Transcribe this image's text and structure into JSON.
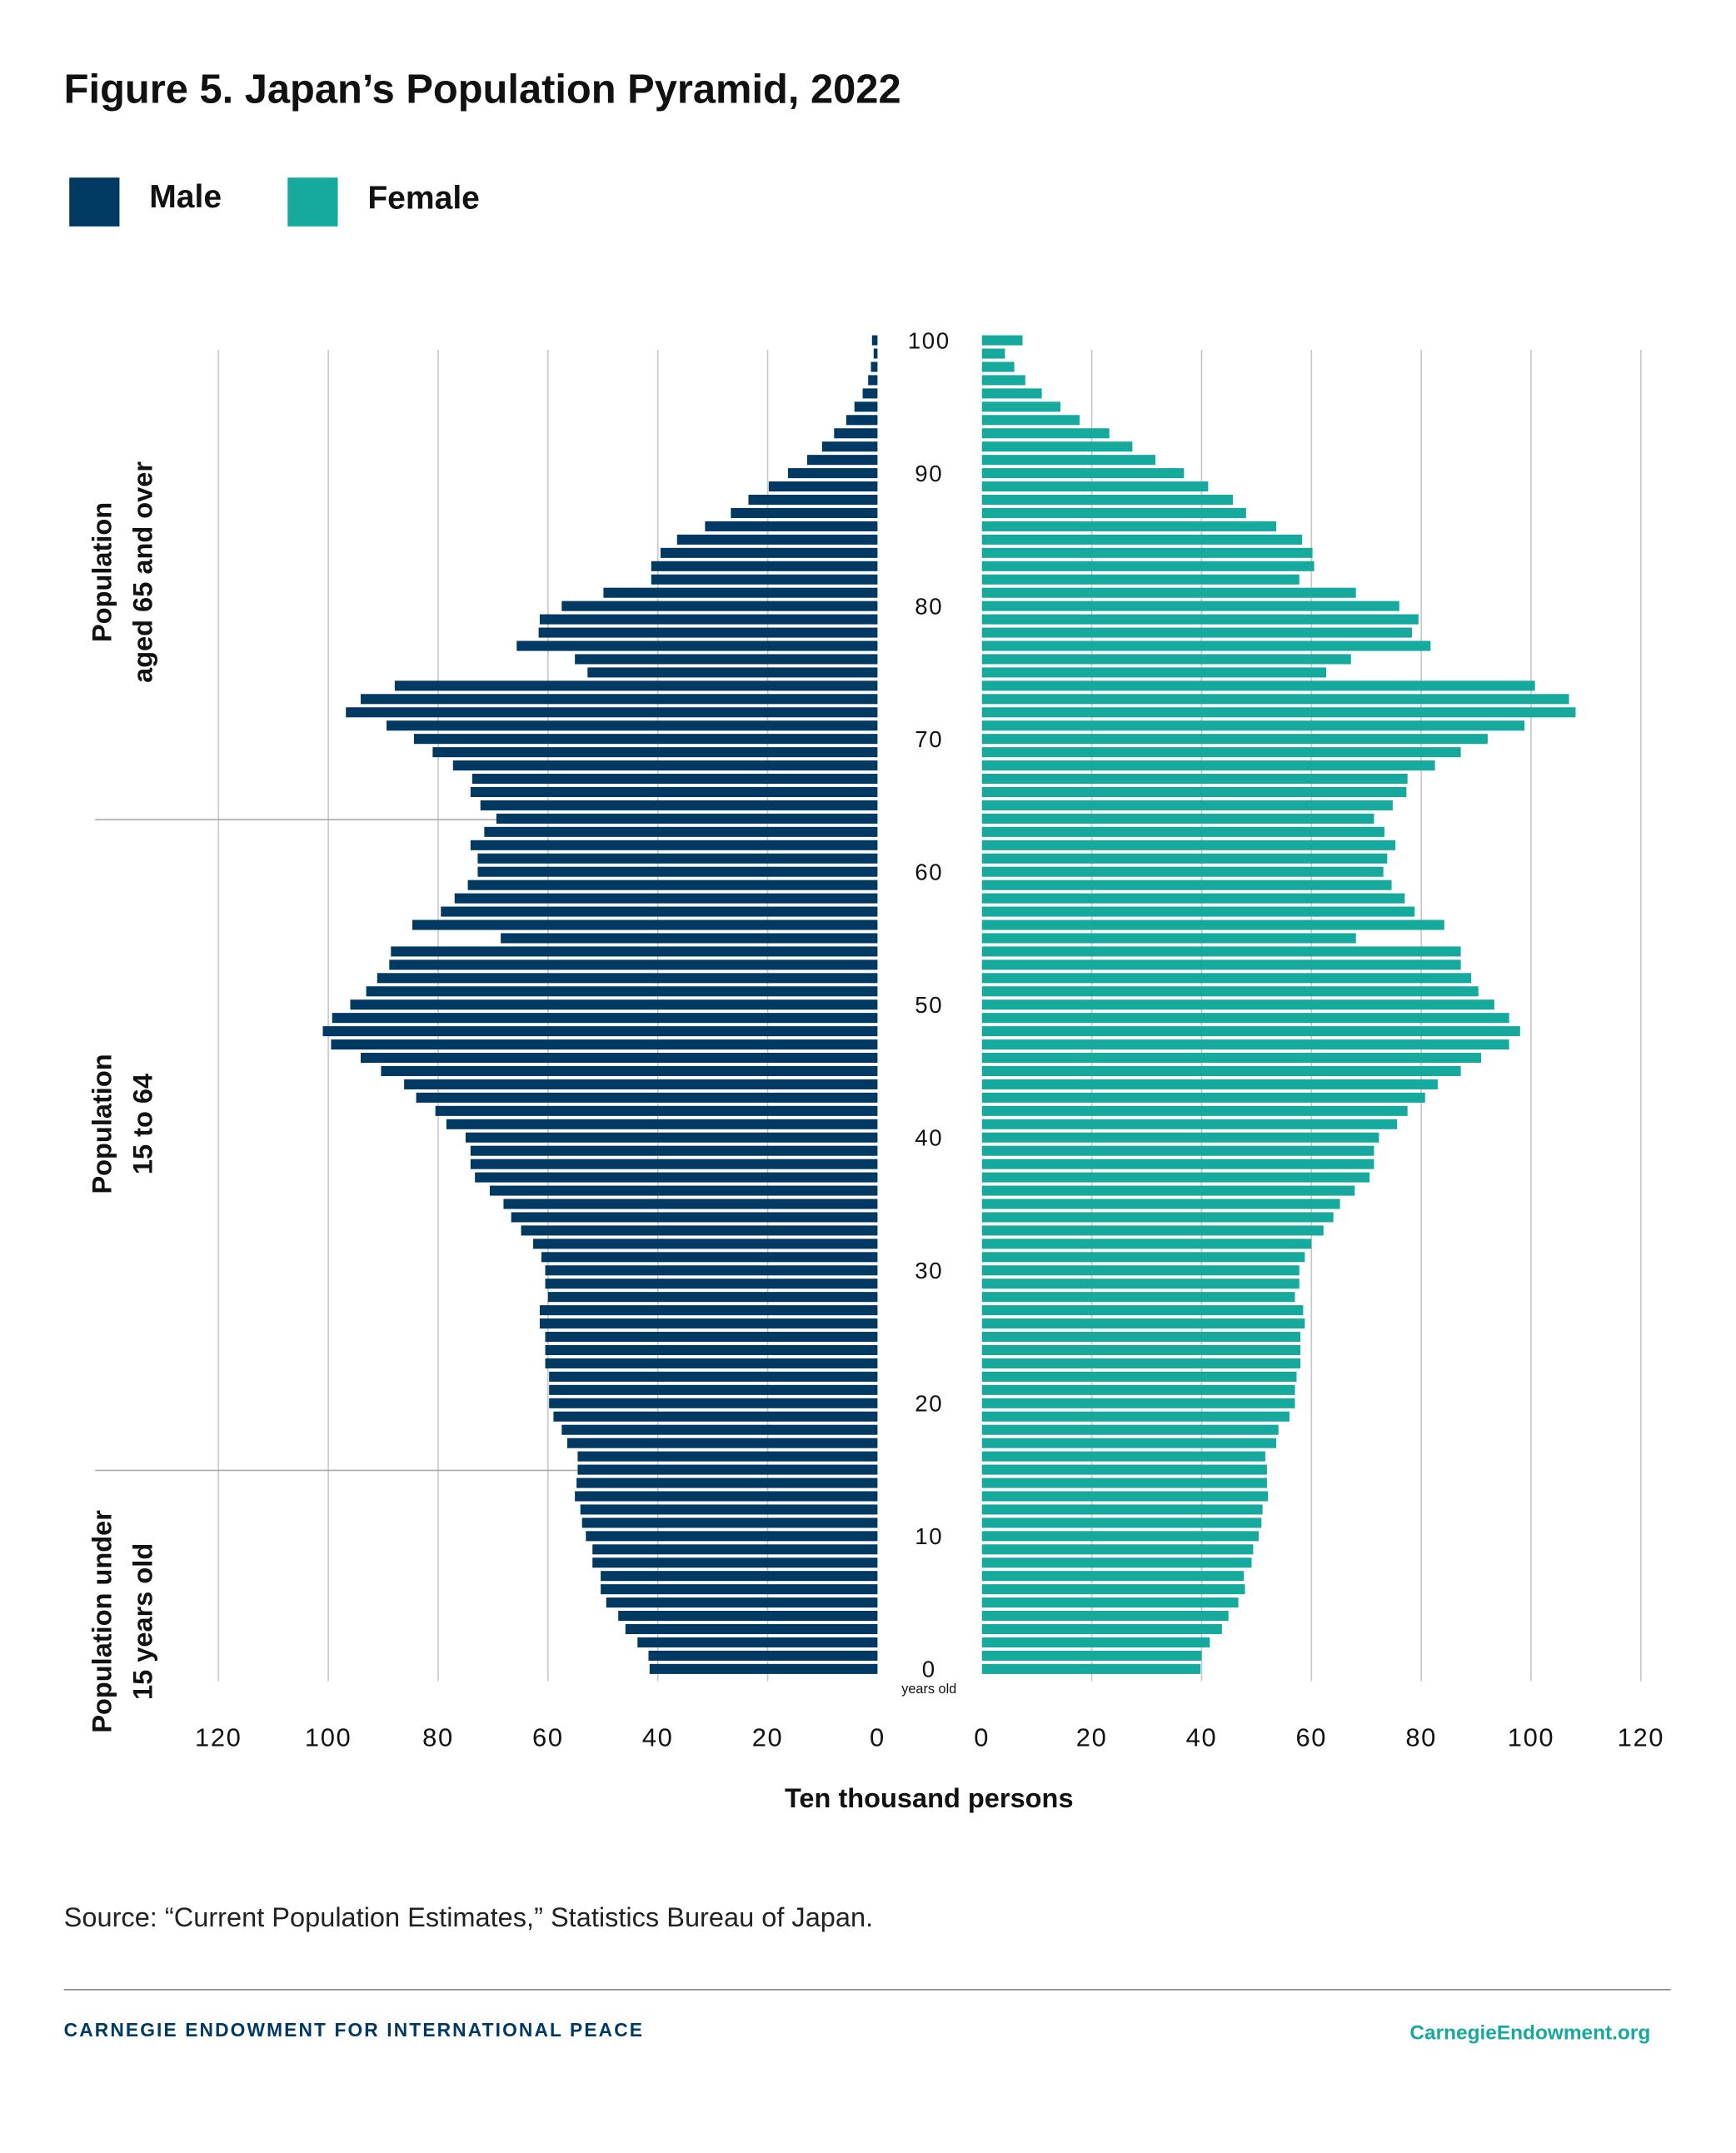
{
  "title": "Figure 5. Japan’s Population Pyramid, 2022",
  "legend": [
    {
      "label": "Male",
      "color": "#003a63"
    },
    {
      "label": "Female",
      "color": "#16a99e"
    }
  ],
  "source": "Source: “Current Population Estimates,” Statistics Bureau of Japan.",
  "footer": {
    "org": "CARNEGIE ENDOWMENT FOR INTERNATIONAL PEACE",
    "url": "CarnegieEndowment.org"
  },
  "group_labels": {
    "over65": [
      "Population",
      "aged 65 and over"
    ],
    "working": [
      "Population",
      "15 to 64"
    ],
    "under15": [
      "Population under",
      "15 years old"
    ]
  },
  "chart_data": {
    "type": "bar",
    "orientation": "horizontal-pyramid",
    "xlabel": "Ten thousand persons",
    "ylabel_unit": "years old",
    "xlim": [
      0,
      120
    ],
    "x_ticks": [
      "120",
      "100",
      "80",
      "60",
      "40",
      "20",
      "0"
    ],
    "x_ticks_right": [
      "0",
      "20",
      "40",
      "60",
      "80",
      "100",
      "120"
    ],
    "age_ticks": [
      "100",
      "90",
      "80",
      "70",
      "60",
      "50",
      "40",
      "30",
      "20",
      "10",
      "0"
    ],
    "grid": true,
    "legend_position": "top-left",
    "ages_descending_from": 100,
    "series": [
      {
        "name": "Male",
        "color": "#003a63",
        "side": "left",
        "values_age_100_to_0": [
          1.0,
          0.7,
          1.2,
          1.7,
          2.7,
          4.2,
          5.7,
          7.9,
          10.1,
          12.8,
          16.3,
          19.8,
          23.5,
          26.7,
          31.4,
          36.5,
          39.5,
          41.2,
          41.2,
          49.9,
          57.5,
          61.5,
          61.7,
          65.7,
          55.1,
          52.8,
          87.9,
          94.1,
          96.8,
          89.4,
          84.4,
          81.0,
          77.3,
          73.8,
          74.1,
          72.3,
          69.4,
          71.6,
          74.1,
          72.8,
          72.8,
          74.6,
          77.0,
          79.5,
          84.7,
          68.6,
          88.6,
          88.9,
          91.1,
          93.1,
          96.0,
          99.3,
          101.0,
          99.5,
          94.1,
          90.4,
          86.2,
          84.0,
          80.5,
          78.5,
          75.0,
          74.1,
          74.1,
          73.3,
          70.6,
          68.1,
          66.7,
          64.9,
          62.7,
          61.2,
          60.5,
          60.5,
          60.0,
          61.5,
          61.5,
          60.5,
          60.5,
          60.5,
          59.8,
          59.8,
          59.8,
          59.0,
          57.5,
          56.5,
          54.6,
          54.6,
          54.8,
          55.1,
          54.1,
          53.8,
          53.1,
          51.9,
          51.9,
          50.4,
          50.4,
          49.4,
          47.2,
          45.9,
          43.7,
          41.7,
          41.5
        ]
      },
      {
        "name": "Female",
        "color": "#16a99e",
        "side": "right",
        "values_age_100_to_0": [
          7.4,
          4.2,
          5.9,
          7.9,
          10.9,
          14.3,
          17.8,
          23.2,
          27.4,
          31.6,
          36.8,
          41.2,
          45.7,
          48.1,
          53.6,
          58.3,
          60.2,
          60.5,
          57.8,
          68.1,
          76.0,
          79.5,
          78.3,
          81.7,
          67.2,
          62.7,
          100.7,
          106.9,
          108.1,
          98.8,
          92.1,
          87.2,
          82.5,
          77.5,
          77.3,
          74.8,
          71.4,
          73.3,
          75.3,
          73.8,
          73.1,
          74.6,
          77.0,
          78.8,
          84.2,
          68.1,
          87.2,
          87.2,
          89.1,
          90.4,
          93.3,
          96.0,
          98.0,
          96.0,
          90.9,
          87.2,
          83.0,
          80.7,
          77.5,
          75.6,
          72.3,
          71.4,
          71.4,
          70.6,
          67.9,
          65.2,
          64.0,
          62.2,
          60.0,
          58.8,
          57.8,
          57.8,
          57.0,
          58.5,
          58.8,
          58.0,
          58.0,
          58.0,
          57.3,
          57.0,
          57.0,
          56.0,
          54.0,
          53.6,
          51.6,
          51.9,
          51.9,
          52.1,
          51.1,
          50.9,
          50.4,
          49.4,
          49.1,
          47.7,
          47.9,
          46.7,
          44.9,
          43.7,
          41.5,
          40.0,
          39.8
        ]
      }
    ]
  }
}
